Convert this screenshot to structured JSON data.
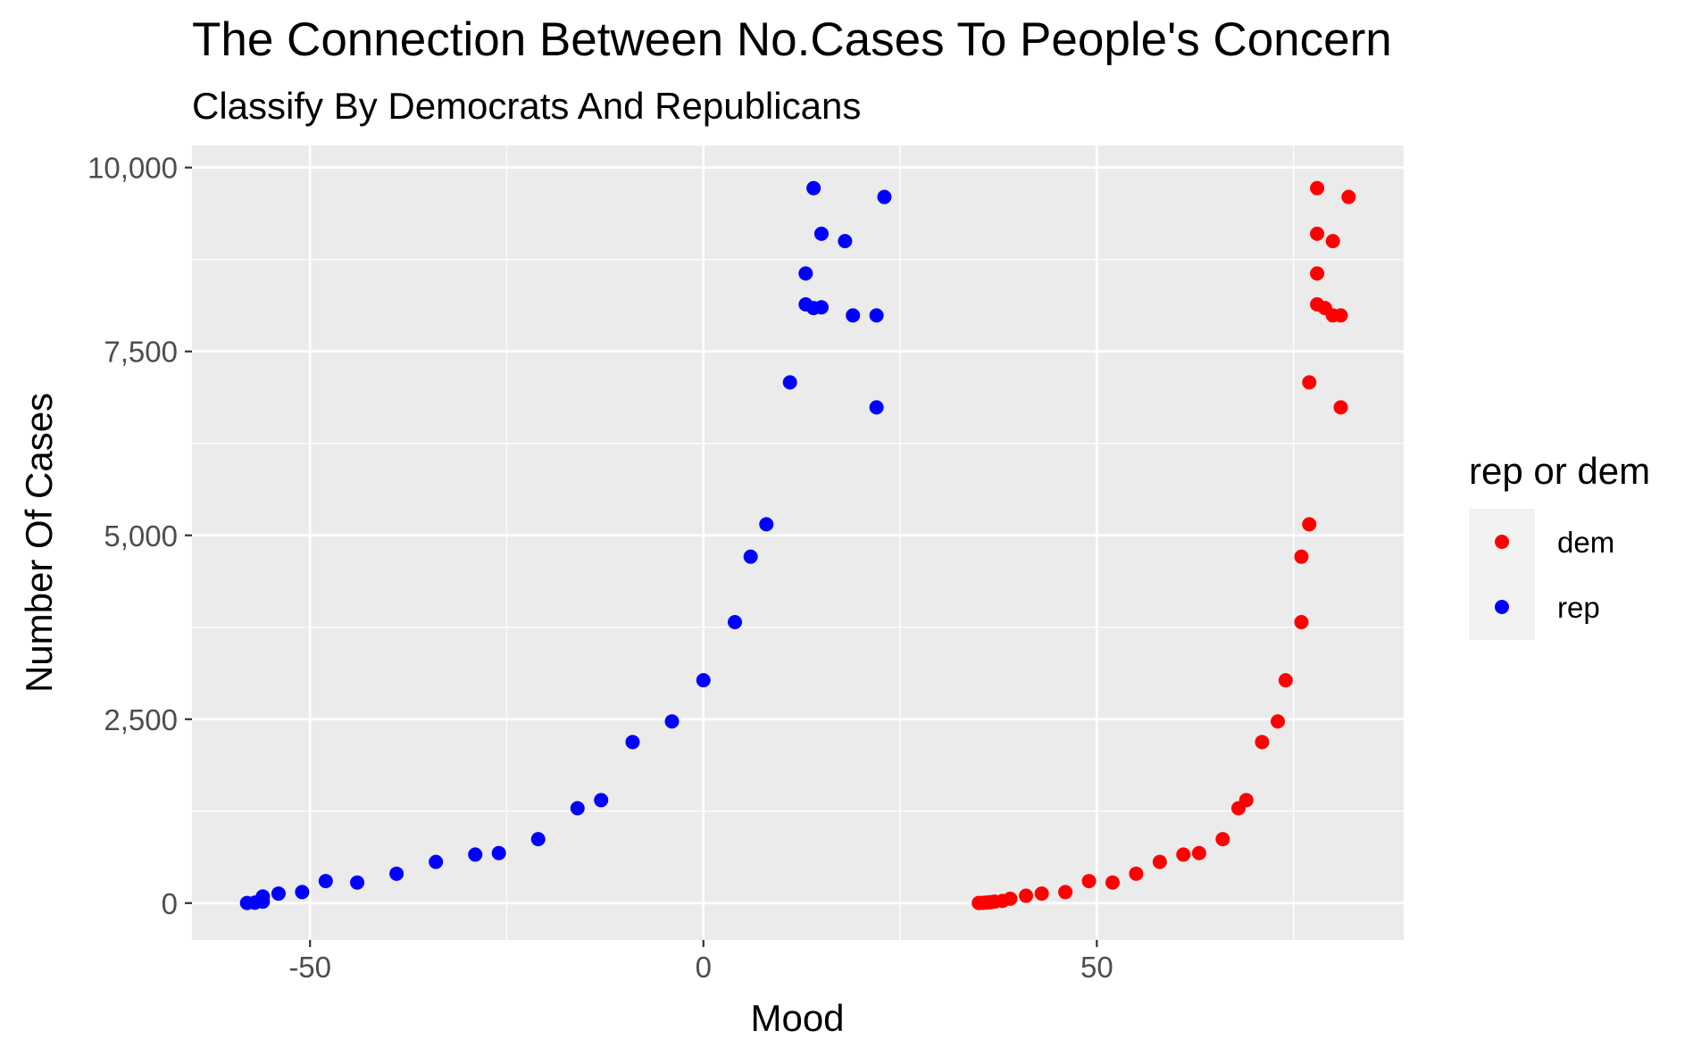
{
  "chart_data": {
    "type": "scatter",
    "title": "The Connection Between No.Cases To People's Concern",
    "subtitle": "Classify By Democrats And Republicans",
    "xlabel": "Mood",
    "ylabel": "Number Of Cases",
    "xlim": [
      -65,
      89
    ],
    "ylim": [
      -500,
      10300
    ],
    "x_ticks": [
      -50,
      0,
      50
    ],
    "x_tick_labels": [
      "-50",
      "0",
      "50"
    ],
    "y_ticks": [
      0,
      2500,
      5000,
      7500,
      10000
    ],
    "y_tick_labels": [
      "0",
      "2,500",
      "5,000",
      "7,500",
      "10,000"
    ],
    "grid": true,
    "legend": {
      "title": "rep or dem",
      "position": "right",
      "entries": [
        "dem",
        "rep"
      ]
    },
    "colors": {
      "dem": "#ff0000",
      "rep": "#0000ff",
      "panel_bg": "#ebebeb",
      "grid": "#ffffff"
    },
    "series": [
      {
        "name": "dem",
        "color": "#ff0000",
        "points": [
          [
            35,
            2
          ],
          [
            35.5,
            4
          ],
          [
            36,
            8
          ],
          [
            36.5,
            12
          ],
          [
            37,
            20
          ],
          [
            38,
            30
          ],
          [
            39,
            60
          ],
          [
            41,
            100
          ],
          [
            43,
            130
          ],
          [
            46,
            150
          ],
          [
            49,
            300
          ],
          [
            52,
            280
          ],
          [
            55,
            400
          ],
          [
            58,
            560
          ],
          [
            61,
            660
          ],
          [
            63,
            680
          ],
          [
            66,
            870
          ],
          [
            68,
            1290
          ],
          [
            69,
            1400
          ],
          [
            71,
            2190
          ],
          [
            73,
            2470
          ],
          [
            74,
            3030
          ],
          [
            76,
            3820
          ],
          [
            76,
            4710
          ],
          [
            77,
            5150
          ],
          [
            77,
            7080
          ],
          [
            78,
            8560
          ],
          [
            78,
            8140
          ],
          [
            79,
            8090
          ],
          [
            80,
            7990
          ],
          [
            81,
            7990
          ],
          [
            81,
            6740
          ],
          [
            78,
            9100
          ],
          [
            80,
            9000
          ],
          [
            78,
            9720
          ],
          [
            82,
            9600
          ]
        ]
      },
      {
        "name": "rep",
        "color": "#0000ff",
        "points": [
          [
            -58,
            2
          ],
          [
            -57,
            6
          ],
          [
            -56,
            20
          ],
          [
            -56,
            90
          ],
          [
            -54,
            130
          ],
          [
            -51,
            150
          ],
          [
            -48,
            300
          ],
          [
            -44,
            280
          ],
          [
            -39,
            400
          ],
          [
            -34,
            560
          ],
          [
            -29,
            660
          ],
          [
            -26,
            680
          ],
          [
            -21,
            870
          ],
          [
            -16,
            1290
          ],
          [
            -13,
            1400
          ],
          [
            -9,
            2190
          ],
          [
            -4,
            2470
          ],
          [
            0,
            3030
          ],
          [
            4,
            3820
          ],
          [
            6,
            4710
          ],
          [
            8,
            5150
          ],
          [
            11,
            7080
          ],
          [
            13,
            8560
          ],
          [
            13,
            8140
          ],
          [
            14,
            8090
          ],
          [
            15,
            8100
          ],
          [
            19,
            7990
          ],
          [
            22,
            7990
          ],
          [
            22,
            6740
          ],
          [
            15,
            9100
          ],
          [
            18,
            9000
          ],
          [
            14,
            9720
          ],
          [
            23,
            9600
          ]
        ]
      }
    ]
  }
}
